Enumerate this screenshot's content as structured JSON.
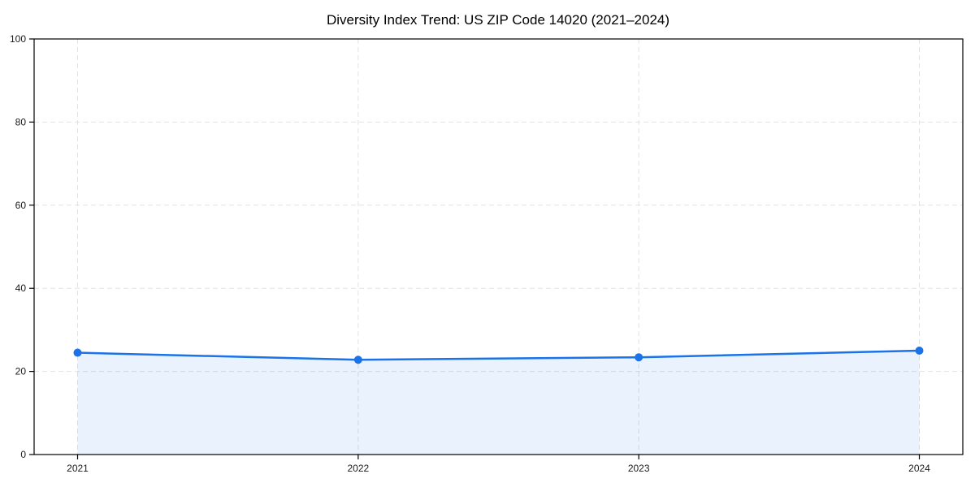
{
  "chart_data": {
    "type": "area",
    "title": "Diversity Index Trend: US ZIP Code 14020 (2021–2024)",
    "xlabel": "",
    "ylabel": "",
    "categories": [
      "2021",
      "2022",
      "2023",
      "2024"
    ],
    "series": [
      {
        "name": "Diversity Index",
        "values": [
          24.5,
          22.8,
          23.4,
          25.0
        ]
      }
    ],
    "ylim": [
      0,
      100
    ],
    "yticks": [
      0,
      20,
      40,
      60,
      80,
      100
    ],
    "grid": true,
    "grid_style": "dashed",
    "legend": "none",
    "marker": {
      "shape": "circle",
      "size": 5
    },
    "colors": {
      "line": "#1a73e8",
      "fill": "rgba(26,115,232,0.09)",
      "grid": "#e2e2e2",
      "axis": "#000000",
      "tick_text": "#1a1a1a",
      "title_text": "#000000",
      "background": "#ffffff"
    }
  }
}
